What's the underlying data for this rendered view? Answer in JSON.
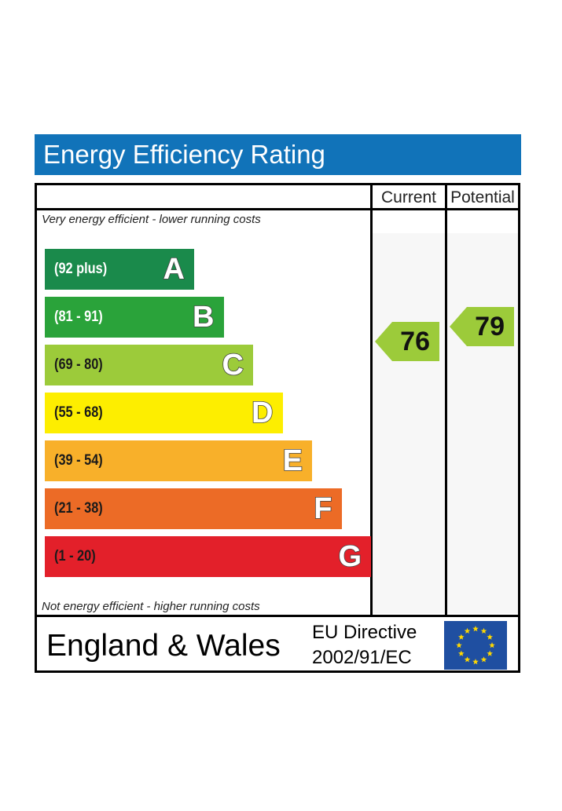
{
  "title": "Energy Efficiency Rating",
  "columns": {
    "current": "Current",
    "potential": "Potential"
  },
  "notes": {
    "top": "Very energy efficient - lower running costs",
    "bottom": "Not energy efficient - higher running costs"
  },
  "chart_data": {
    "type": "bar",
    "bands": [
      {
        "letter": "A",
        "range": "(92 plus)",
        "color": "#1a8a4b",
        "text_color": "#ffffff"
      },
      {
        "letter": "B",
        "range": "(81 - 91)",
        "color": "#2aa33a",
        "text_color": "#ffffff"
      },
      {
        "letter": "C",
        "range": "(69 - 80)",
        "color": "#9ccb3a",
        "text_color": "#1a1a1a"
      },
      {
        "letter": "D",
        "range": "(55 - 68)",
        "color": "#fdee00",
        "text_color": "#1a1a1a"
      },
      {
        "letter": "E",
        "range": "(39 - 54)",
        "color": "#f8b02a",
        "text_color": "#1a1a1a"
      },
      {
        "letter": "F",
        "range": "(21 - 38)",
        "color": "#ec6b26",
        "text_color": "#1a1a1a"
      },
      {
        "letter": "G",
        "range": "(1 - 20)",
        "color": "#e3202a",
        "text_color": "#1a1a1a"
      }
    ],
    "current": {
      "value": 76,
      "band": "C",
      "color": "#9ccb3a"
    },
    "potential": {
      "value": 79,
      "band": "C",
      "color": "#9ccb3a"
    }
  },
  "footer": {
    "region": "England & Wales",
    "directive_line1": "EU Directive",
    "directive_line2": "2002/91/EC",
    "flag_color": "#1f4fa1",
    "star_color": "#ffd800"
  }
}
